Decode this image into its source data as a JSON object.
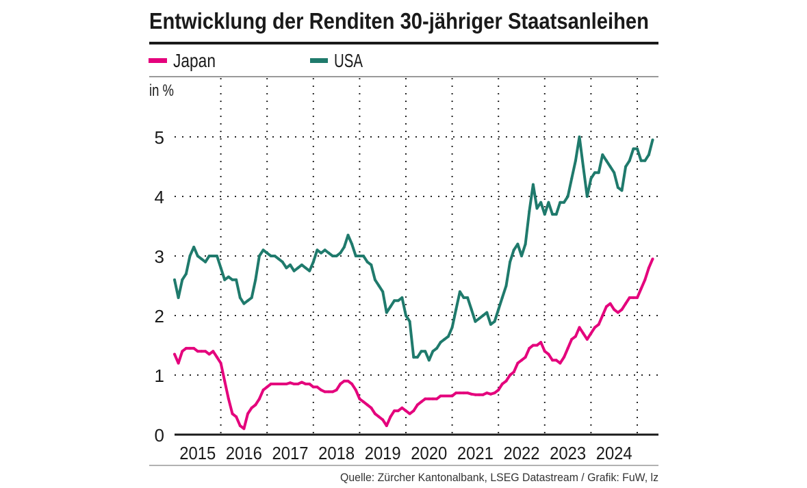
{
  "title": "Entwicklung der Renditen 30-jähriger Staatsanleihen",
  "source": "Quelle: Zürcher Kantonalbank, LSEG Datastream / Grafik: FuW, lz",
  "chart_data": {
    "type": "line",
    "title": "Entwicklung der Renditen 30-jähriger Staatsanleihen",
    "ylabel": "in %",
    "xlabel": "",
    "ylim": [
      0,
      5.5
    ],
    "yticks": [
      "0",
      "1",
      "2",
      "3",
      "4",
      "5"
    ],
    "xticks": [
      "2015",
      "2016",
      "2017",
      "2018",
      "2019",
      "2020",
      "2021",
      "2022",
      "2023",
      "2024"
    ],
    "xlim": [
      "2015-01",
      "2025-05"
    ],
    "grid": true,
    "legend_position": "top-left",
    "x_start": "2015-01",
    "x_step": "month",
    "series": [
      {
        "name": "Japan",
        "color": "#e4007c",
        "values": [
          1.35,
          1.2,
          1.4,
          1.45,
          1.45,
          1.45,
          1.4,
          1.4,
          1.4,
          1.35,
          1.4,
          1.3,
          1.2,
          0.9,
          0.6,
          0.35,
          0.3,
          0.15,
          0.1,
          0.35,
          0.45,
          0.5,
          0.6,
          0.75,
          0.8,
          0.85,
          0.85,
          0.85,
          0.85,
          0.85,
          0.87,
          0.85,
          0.85,
          0.88,
          0.85,
          0.85,
          0.8,
          0.8,
          0.75,
          0.72,
          0.72,
          0.72,
          0.75,
          0.85,
          0.9,
          0.9,
          0.85,
          0.75,
          0.6,
          0.55,
          0.5,
          0.45,
          0.35,
          0.3,
          0.25,
          0.15,
          0.3,
          0.4,
          0.4,
          0.45,
          0.4,
          0.35,
          0.4,
          0.5,
          0.55,
          0.6,
          0.6,
          0.6,
          0.6,
          0.65,
          0.65,
          0.65,
          0.65,
          0.7,
          0.7,
          0.7,
          0.7,
          0.68,
          0.67,
          0.67,
          0.67,
          0.7,
          0.68,
          0.7,
          0.75,
          0.85,
          0.9,
          1.0,
          1.05,
          1.2,
          1.25,
          1.3,
          1.45,
          1.5,
          1.5,
          1.55,
          1.4,
          1.35,
          1.25,
          1.25,
          1.2,
          1.3,
          1.45,
          1.6,
          1.65,
          1.8,
          1.7,
          1.6,
          1.7,
          1.8,
          1.85,
          2.0,
          2.15,
          2.2,
          2.1,
          2.05,
          2.1,
          2.2,
          2.3,
          2.3,
          2.3,
          2.45,
          2.6,
          2.8,
          2.95
        ]
      },
      {
        "name": "USA",
        "color": "#1f7a6c",
        "values": [
          2.6,
          2.3,
          2.6,
          2.7,
          3.0,
          3.15,
          3.0,
          2.95,
          2.9,
          3.0,
          3.0,
          3.0,
          2.8,
          2.6,
          2.65,
          2.6,
          2.6,
          2.3,
          2.2,
          2.25,
          2.3,
          2.6,
          3.0,
          3.1,
          3.05,
          3.0,
          3.0,
          2.95,
          2.9,
          2.8,
          2.85,
          2.75,
          2.8,
          2.85,
          2.8,
          2.75,
          2.9,
          3.1,
          3.05,
          3.1,
          3.05,
          3.0,
          3.0,
          3.05,
          3.15,
          3.35,
          3.2,
          3.0,
          3.0,
          3.0,
          2.9,
          2.85,
          2.6,
          2.5,
          2.4,
          2.05,
          2.15,
          2.25,
          2.25,
          2.3,
          2.0,
          1.9,
          1.3,
          1.3,
          1.4,
          1.4,
          1.25,
          1.4,
          1.45,
          1.55,
          1.6,
          1.65,
          1.8,
          2.1,
          2.4,
          2.3,
          2.3,
          2.1,
          1.9,
          1.95,
          2.0,
          2.05,
          1.85,
          1.9,
          2.1,
          2.3,
          2.5,
          2.9,
          3.1,
          3.2,
          3.0,
          3.2,
          3.75,
          4.2,
          3.8,
          3.9,
          3.7,
          3.9,
          3.7,
          3.7,
          3.9,
          3.9,
          4.0,
          4.3,
          4.6,
          5.0,
          4.5,
          4.0,
          4.3,
          4.4,
          4.4,
          4.7,
          4.6,
          4.5,
          4.4,
          4.15,
          4.1,
          4.5,
          4.6,
          4.8,
          4.8,
          4.6,
          4.6,
          4.7,
          4.95
        ]
      }
    ]
  }
}
